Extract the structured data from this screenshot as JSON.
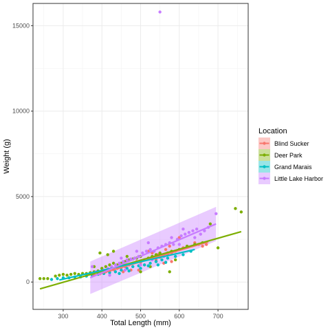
{
  "chart_data": {
    "type": "scatter",
    "xlabel": "Total Length (mm)",
    "ylabel": "Weight (g)",
    "xlim": [
      222,
      778
    ],
    "ylim": [
      -1600,
      16300
    ],
    "x_ticks": [
      300,
      400,
      500,
      600,
      700
    ],
    "y_ticks": [
      0,
      5000,
      10000,
      15000
    ],
    "x_tick_labels": [
      "300",
      "400",
      "500",
      "600",
      "700"
    ],
    "y_tick_labels": [
      "0",
      "5000",
      "10000",
      "15000"
    ],
    "grid": true,
    "legend": {
      "title": "Location",
      "placement": "right",
      "entries": [
        "Blind Sucker",
        "Deer Park",
        "Grand Marais",
        "Little Lake Harbor"
      ]
    },
    "series": [
      {
        "name": "Blind Sucker",
        "color": "#F8766D",
        "points": [
          [
            380,
            420
          ],
          [
            395,
            480
          ],
          [
            410,
            600
          ],
          [
            420,
            650
          ],
          [
            430,
            720
          ],
          [
            440,
            800
          ],
          [
            450,
            850
          ],
          [
            460,
            900
          ],
          [
            470,
            1000
          ],
          [
            480,
            1100
          ],
          [
            490,
            1200
          ],
          [
            500,
            1150
          ],
          [
            510,
            1300
          ],
          [
            520,
            1350
          ],
          [
            530,
            1400
          ],
          [
            540,
            1300
          ],
          [
            550,
            1450
          ],
          [
            560,
            1500
          ],
          [
            570,
            1600
          ],
          [
            580,
            1700
          ],
          [
            590,
            1800
          ],
          [
            600,
            1900
          ],
          [
            610,
            2000
          ],
          [
            620,
            2100
          ],
          [
            640,
            2300
          ],
          [
            650,
            2200
          ],
          [
            660,
            2100
          ],
          [
            670,
            2200
          ],
          [
            520,
            1800
          ],
          [
            545,
            1600
          ],
          [
            560,
            1100
          ],
          [
            580,
            1200
          ],
          [
            455,
            600
          ],
          [
            475,
            700
          ],
          [
            495,
            700
          ],
          [
            510,
            1000
          ],
          [
            530,
            1700
          ],
          [
            565,
            1900
          ],
          [
            600,
            2600
          ],
          [
            575,
            2100
          ]
        ],
        "fit": {
          "x": [
            375,
            675
          ],
          "y": [
            350,
            2350
          ]
        }
      },
      {
        "name": "Deer Park",
        "color": "#7CAE00",
        "points": [
          [
            240,
            200
          ],
          [
            250,
            200
          ],
          [
            260,
            200
          ],
          [
            280,
            350
          ],
          [
            290,
            400
          ],
          [
            300,
            450
          ],
          [
            310,
            400
          ],
          [
            320,
            450
          ],
          [
            330,
            500
          ],
          [
            340,
            450
          ],
          [
            350,
            500
          ],
          [
            360,
            500
          ],
          [
            370,
            550
          ],
          [
            380,
            600
          ],
          [
            390,
            650
          ],
          [
            400,
            800
          ],
          [
            410,
            900
          ],
          [
            420,
            1000
          ],
          [
            430,
            1100
          ],
          [
            440,
            1000
          ],
          [
            450,
            1100
          ],
          [
            460,
            1200
          ],
          [
            470,
            1300
          ],
          [
            480,
            1350
          ],
          [
            490,
            1400
          ],
          [
            500,
            1500
          ],
          [
            510,
            1300
          ],
          [
            520,
            1400
          ],
          [
            530,
            1500
          ],
          [
            540,
            1600
          ],
          [
            550,
            1700
          ],
          [
            560,
            1500
          ],
          [
            570,
            1700
          ],
          [
            580,
            1800
          ],
          [
            600,
            1900
          ],
          [
            620,
            2100
          ],
          [
            640,
            2200
          ],
          [
            660,
            2300
          ],
          [
            680,
            3400
          ],
          [
            700,
            2000
          ],
          [
            745,
            4300
          ],
          [
            760,
            4100
          ],
          [
            415,
            1600
          ],
          [
            395,
            1700
          ],
          [
            430,
            1800
          ],
          [
            380,
            900
          ],
          [
            540,
            1200
          ],
          [
            575,
            600
          ],
          [
            500,
            600
          ],
          [
            590,
            1300
          ],
          [
            465,
            1500
          ],
          [
            525,
            900
          ]
        ],
        "fit": {
          "x": [
            240,
            760
          ],
          "y": [
            -400,
            2950
          ]
        }
      },
      {
        "name": "Grand Marais",
        "color": "#00BFC4",
        "points": [
          [
            270,
            150
          ],
          [
            285,
            200
          ],
          [
            300,
            250
          ],
          [
            315,
            250
          ],
          [
            330,
            300
          ],
          [
            345,
            300
          ],
          [
            360,
            350
          ],
          [
            375,
            400
          ],
          [
            390,
            450
          ],
          [
            405,
            500
          ],
          [
            420,
            550
          ],
          [
            435,
            600
          ],
          [
            450,
            700
          ],
          [
            465,
            800
          ],
          [
            480,
            900
          ],
          [
            495,
            950
          ],
          [
            510,
            1000
          ],
          [
            525,
            1100
          ],
          [
            540,
            1200
          ],
          [
            555,
            1300
          ],
          [
            570,
            1400
          ],
          [
            590,
            1500
          ],
          [
            610,
            1600
          ],
          [
            630,
            1800
          ],
          [
            445,
            500
          ],
          [
            470,
            650
          ],
          [
            500,
            800
          ],
          [
            520,
            950
          ],
          [
            545,
            1000
          ],
          [
            565,
            1150
          ]
        ],
        "fit": {
          "x": [
            290,
            640
          ],
          "y": [
            120,
            1900
          ]
        }
      },
      {
        "name": "Little Lake Harbor",
        "color": "#C77CFF",
        "points": [
          [
            375,
            900
          ],
          [
            385,
            600
          ],
          [
            395,
            500
          ],
          [
            405,
            700
          ],
          [
            415,
            800
          ],
          [
            425,
            900
          ],
          [
            435,
            1000
          ],
          [
            445,
            1100
          ],
          [
            455,
            1200
          ],
          [
            465,
            1300
          ],
          [
            475,
            1350
          ],
          [
            485,
            1400
          ],
          [
            495,
            1500
          ],
          [
            505,
            1700
          ],
          [
            515,
            1800
          ],
          [
            525,
            1900
          ],
          [
            535,
            1800
          ],
          [
            545,
            2000
          ],
          [
            555,
            2100
          ],
          [
            565,
            2200
          ],
          [
            575,
            2300
          ],
          [
            585,
            2200
          ],
          [
            595,
            2500
          ],
          [
            605,
            2700
          ],
          [
            615,
            2800
          ],
          [
            625,
            2900
          ],
          [
            635,
            3000
          ],
          [
            645,
            3100
          ],
          [
            655,
            2800
          ],
          [
            665,
            3000
          ],
          [
            675,
            3200
          ],
          [
            695,
            4000
          ],
          [
            550,
            15800
          ],
          [
            420,
            400
          ],
          [
            460,
            700
          ],
          [
            500,
            1000
          ],
          [
            530,
            1300
          ],
          [
            560,
            1500
          ],
          [
            600,
            2200
          ],
          [
            640,
            2600
          ],
          [
            520,
            2300
          ],
          [
            580,
            2600
          ],
          [
            610,
            3100
          ],
          [
            450,
            1400
          ],
          [
            490,
            1800
          ]
        ],
        "fit": {
          "x": [
            370,
            695
          ],
          "y": [
            250,
            3400
          ]
        },
        "band": {
          "x": [
            370,
            695
          ],
          "lower": [
            -700,
            2400
          ],
          "upper": [
            1200,
            4400
          ]
        }
      }
    ]
  }
}
